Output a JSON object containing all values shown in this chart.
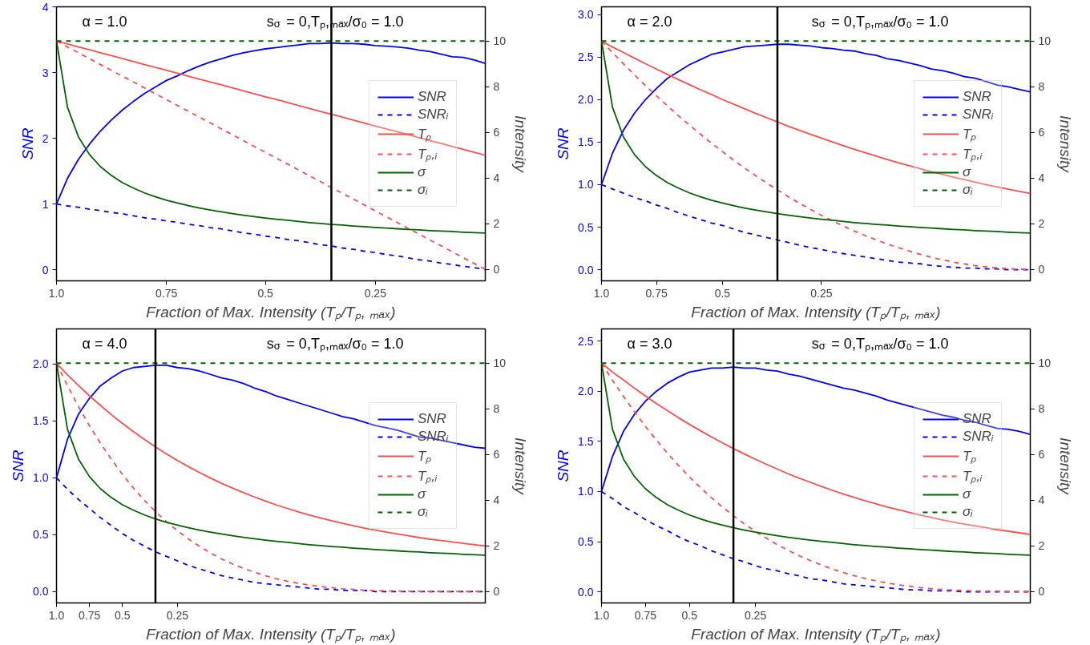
{
  "chart_data": [
    {
      "type": "line",
      "ylabel": "SNR",
      "y2label": "Intensity",
      "xlabel": "Fraction of Max. Intensity (Tₚ/Tₚ, ₘₐₓ)",
      "annotations": [
        "α = 1.0",
        "s$_{σ}$ = 0,Tₚ,ₘₐₓ/σ₀ = 1.0"
      ],
      "categories": [
        "1.0",
        null,
        null,
        null,
        null,
        null,
        null,
        null,
        null,
        null,
        "0.75",
        null,
        null,
        null,
        null,
        null,
        null,
        null,
        null,
        "0.5",
        null,
        null,
        null,
        null,
        null,
        null,
        null,
        null,
        null,
        "0.25",
        null,
        null,
        null,
        null,
        null,
        null,
        null,
        null,
        null,
        null
      ],
      "ylim": [
        -0.17,
        4.0
      ],
      "yticks": [
        0,
        1,
        2,
        3,
        4
      ],
      "y2lim": [
        -0.5,
        11.5
      ],
      "y2ticks": [
        0,
        2,
        4,
        6,
        8,
        10
      ],
      "legend": "right",
      "series": [
        {
          "name": "SNR",
          "color": "#0000ff",
          "values": [
            1.0,
            1.39,
            1.68,
            1.91,
            2.11,
            2.28,
            2.43,
            2.56,
            2.68,
            2.78,
            2.88,
            2.95,
            3.03,
            3.1,
            3.16,
            3.21,
            3.26,
            3.3,
            3.33,
            3.36,
            3.38,
            3.4,
            3.42,
            3.44,
            3.44,
            3.45,
            3.44,
            3.44,
            3.43,
            3.41,
            3.4,
            3.39,
            3.37,
            3.34,
            3.32,
            3.28,
            3.24,
            3.23,
            3.19,
            3.14
          ]
        },
        {
          "name": "SNRᵢ",
          "color": "#0000ff",
          "line_style": "dashed",
          "values": [
            1,
            0.97,
            0.95,
            0.92,
            0.9,
            0.87,
            0.85,
            0.82,
            0.79,
            0.77,
            0.74,
            0.72,
            0.69,
            0.67,
            0.64,
            0.62,
            0.59,
            0.56,
            0.54,
            0.51,
            0.49,
            0.46,
            0.44,
            0.41,
            0.38,
            0.36,
            0.33,
            0.31,
            0.28,
            0.26,
            0.23,
            0.21,
            0.18,
            0.15,
            0.13,
            0.1,
            0.08,
            0.05,
            0.03,
            0
          ]
        },
        {
          "name": "Tₚ",
          "color": "#ff4d4d",
          "axis": "y2",
          "values": [
            10,
            9.87,
            9.74,
            9.62,
            9.49,
            9.36,
            9.23,
            9.1,
            8.97,
            8.85,
            8.72,
            8.59,
            8.46,
            8.33,
            8.21,
            8.08,
            7.95,
            7.82,
            7.69,
            7.56,
            7.44,
            7.31,
            7.18,
            7.05,
            6.92,
            6.79,
            6.67,
            6.54,
            6.41,
            6.28,
            6.15,
            6.03,
            5.9,
            5.77,
            5.64,
            5.51,
            5.38,
            5.26,
            5.13,
            5.0
          ]
        },
        {
          "name": "Tₚ,ᵢ",
          "color": "#ff4d4d",
          "axis": "y2",
          "line_style": "dashed",
          "values": [
            10,
            9.74,
            9.49,
            9.23,
            8.97,
            8.72,
            8.46,
            8.21,
            7.95,
            7.69,
            7.44,
            7.18,
            6.92,
            6.67,
            6.41,
            6.15,
            5.9,
            5.64,
            5.38,
            5.13,
            4.87,
            4.62,
            4.36,
            4.1,
            3.85,
            3.59,
            3.33,
            3.08,
            2.82,
            2.56,
            2.31,
            2.05,
            1.79,
            1.54,
            1.28,
            1.03,
            0.77,
            0.51,
            0.26,
            0
          ]
        },
        {
          "name": "σ",
          "color": "#006400",
          "axis": "y2",
          "values": [
            10,
            7.1,
            5.8,
            5.03,
            4.5,
            4.11,
            3.8,
            3.56,
            3.35,
            3.18,
            3.03,
            2.91,
            2.79,
            2.69,
            2.6,
            2.52,
            2.44,
            2.37,
            2.31,
            2.25,
            2.2,
            2.15,
            2.1,
            2.05,
            2.01,
            1.97,
            1.94,
            1.9,
            1.87,
            1.84,
            1.81,
            1.78,
            1.75,
            1.73,
            1.7,
            1.68,
            1.66,
            1.63,
            1.61,
            1.59
          ]
        },
        {
          "name": "σᵢ",
          "color": "#006400",
          "axis": "y2",
          "line_style": "dashed",
          "values": [
            10,
            10,
            10,
            10,
            10,
            10,
            10,
            10,
            10,
            10,
            10,
            10,
            10,
            10,
            10,
            10,
            10,
            10,
            10,
            10,
            10,
            10,
            10,
            10,
            10,
            10,
            10,
            10,
            10,
            10,
            10,
            10,
            10,
            10,
            10,
            10,
            10,
            10,
            10,
            10
          ]
        }
      ]
    },
    {
      "type": "line",
      "ylabel": "SNR",
      "y2label": "Intensity",
      "xlabel": "Fraction of Max. Intensity (Tₚ/Tₚ, ₘₐₓ)",
      "annotations": [
        "α = 2.0",
        "s$_{σ}$ = 0,Tₚ,ₘₐₓ/σ₀ = 1.0"
      ],
      "categories": [
        "1.0",
        null,
        null,
        null,
        null,
        "0.75",
        null,
        null,
        null,
        null,
        null,
        "0.5",
        null,
        null,
        null,
        null,
        null,
        null,
        null,
        null,
        "0.25",
        null,
        null,
        null,
        null,
        null,
        null,
        null,
        null,
        null,
        null,
        null,
        null,
        null,
        null,
        null,
        null,
        null,
        null,
        null
      ],
      "ylim": [
        -0.13,
        3.09
      ],
      "yticks": [
        {
          "value": 0,
          "label": "0.0"
        },
        0.5,
        {
          "value": 1,
          "label": "1.0"
        },
        1.5,
        {
          "value": 2,
          "label": "2.0"
        },
        2.5,
        {
          "value": 3,
          "label": "3.0"
        }
      ],
      "y2lim": [
        -0.5,
        11.5
      ],
      "y2ticks": [
        0,
        2,
        4,
        6,
        8,
        10
      ],
      "legend": "right",
      "series": [
        {
          "name": "SNR",
          "color": "#0000ff",
          "values": [
            1.0,
            1.37,
            1.64,
            1.84,
            2.0,
            2.13,
            2.25,
            2.33,
            2.41,
            2.47,
            2.53,
            2.56,
            2.59,
            2.62,
            2.63,
            2.64,
            2.65,
            2.65,
            2.64,
            2.63,
            2.61,
            2.6,
            2.58,
            2.57,
            2.54,
            2.52,
            2.48,
            2.46,
            2.43,
            2.4,
            2.36,
            2.34,
            2.31,
            2.27,
            2.25,
            2.21,
            2.17,
            2.15,
            2.12,
            2.09
          ]
        },
        {
          "name": "SNRᵢ",
          "color": "#0000ff",
          "line_style": "dashed",
          "values": [
            1,
            0.95,
            0.9,
            0.85,
            0.81,
            0.76,
            0.72,
            0.67,
            0.63,
            0.59,
            0.55,
            0.52,
            0.48,
            0.44,
            0.41,
            0.38,
            0.35,
            0.32,
            0.29,
            0.26,
            0.24,
            0.21,
            0.19,
            0.17,
            0.15,
            0.13,
            0.11,
            0.09,
            0.08,
            0.07,
            0.05,
            0.04,
            0.03,
            0.02,
            0.02,
            0.01,
            0.01,
            0,
            0,
            0
          ]
        },
        {
          "name": "Tₚ",
          "color": "#ff4d4d",
          "axis": "y2",
          "values": [
            10,
            9.74,
            9.5,
            9.25,
            9.01,
            8.77,
            8.54,
            8.31,
            8.09,
            7.87,
            7.66,
            7.44,
            7.24,
            7.04,
            6.84,
            6.65,
            6.46,
            6.27,
            6.09,
            5.92,
            5.75,
            5.58,
            5.42,
            5.26,
            5.11,
            4.96,
            4.81,
            4.67,
            4.54,
            4.41,
            4.28,
            4.16,
            4.04,
            3.93,
            3.82,
            3.71,
            3.61,
            3.51,
            3.42,
            3.33
          ]
        },
        {
          "name": "Tₚ,ᵢ",
          "color": "#ff4d4d",
          "axis": "y2",
          "line_style": "dashed",
          "values": [
            10,
            9.49,
            9.0,
            8.52,
            8.05,
            7.6,
            7.16,
            6.73,
            6.32,
            5.92,
            5.53,
            5.16,
            4.79,
            4.44,
            4.11,
            3.79,
            3.48,
            3.18,
            2.9,
            2.63,
            2.37,
            2.13,
            1.9,
            1.68,
            1.48,
            1.29,
            1.11,
            0.95,
            0.8,
            0.66,
            0.53,
            0.42,
            0.32,
            0.24,
            0.16,
            0.11,
            0.06,
            0.03,
            0.01,
            0
          ]
        },
        {
          "name": "σ",
          "color": "#006400",
          "axis": "y2",
          "values": [
            10,
            7.1,
            5.8,
            5.03,
            4.5,
            4.11,
            3.8,
            3.56,
            3.35,
            3.18,
            3.03,
            2.91,
            2.79,
            2.69,
            2.6,
            2.52,
            2.44,
            2.37,
            2.31,
            2.25,
            2.2,
            2.15,
            2.1,
            2.05,
            2.01,
            1.97,
            1.94,
            1.9,
            1.87,
            1.84,
            1.81,
            1.78,
            1.75,
            1.73,
            1.7,
            1.68,
            1.66,
            1.63,
            1.61,
            1.59
          ]
        },
        {
          "name": "σᵢ",
          "color": "#006400",
          "axis": "y2",
          "line_style": "dashed",
          "values": [
            10,
            10,
            10,
            10,
            10,
            10,
            10,
            10,
            10,
            10,
            10,
            10,
            10,
            10,
            10,
            10,
            10,
            10,
            10,
            10,
            10,
            10,
            10,
            10,
            10,
            10,
            10,
            10,
            10,
            10,
            10,
            10,
            10,
            10,
            10,
            10,
            10,
            10,
            10,
            10
          ]
        }
      ]
    },
    {
      "type": "line",
      "ylabel": "SNR",
      "y2label": "Intensity",
      "xlabel": "Fraction of Max. Intensity (Tₚ/Tₚ, ₘₐₓ)",
      "annotations": [
        "α = 4.0",
        "s$_{σ}$ = 0,Tₚ,ₘₐₓ/σ₀ = 1.0"
      ],
      "categories": [
        "1.0",
        null,
        null,
        "0.75",
        null,
        null,
        "0.5",
        null,
        null,
        null,
        null,
        "0.25",
        null,
        null,
        null,
        null,
        null,
        null,
        null,
        null,
        null,
        null,
        null,
        null,
        null,
        null,
        null,
        null,
        null,
        null,
        null,
        null,
        null,
        null,
        null,
        null,
        null,
        null,
        null,
        null
      ],
      "ylim": [
        -0.1,
        2.31
      ],
      "yticks": [
        {
          "value": 0,
          "label": "0.0"
        },
        0.5,
        {
          "value": 1,
          "label": "1.0"
        },
        1.5,
        {
          "value": 2,
          "label": "2.0"
        }
      ],
      "y2lim": [
        -0.5,
        11.5
      ],
      "y2ticks": [
        0,
        2,
        4,
        6,
        8,
        10
      ],
      "legend": "right",
      "series": [
        {
          "name": "SNR",
          "color": "#0000ff",
          "values": [
            1.0,
            1.34,
            1.56,
            1.7,
            1.81,
            1.88,
            1.94,
            1.97,
            1.98,
            1.99,
            1.99,
            1.97,
            1.96,
            1.94,
            1.91,
            1.88,
            1.86,
            1.83,
            1.79,
            1.76,
            1.72,
            1.69,
            1.66,
            1.63,
            1.6,
            1.57,
            1.54,
            1.52,
            1.49,
            1.46,
            1.44,
            1.42,
            1.39,
            1.36,
            1.35,
            1.33,
            1.31,
            1.29,
            1.27,
            1.26
          ]
        },
        {
          "name": "SNRᵢ",
          "color": "#0000ff",
          "line_style": "dashed",
          "values": [
            1,
            0.9,
            0.81,
            0.73,
            0.65,
            0.58,
            0.51,
            0.45,
            0.4,
            0.35,
            0.31,
            0.27,
            0.23,
            0.2,
            0.17,
            0.14,
            0.12,
            0.1,
            0.08,
            0.07,
            0.06,
            0.05,
            0.04,
            0.03,
            0.02,
            0.02,
            0.01,
            0.01,
            0.01,
            0,
            0,
            0,
            0,
            0,
            0,
            0,
            0,
            0,
            0,
            0
          ]
        },
        {
          "name": "Tₚ",
          "color": "#ff4d4d",
          "axis": "y2",
          "values": [
            10,
            9.49,
            9.02,
            8.57,
            8.15,
            7.74,
            7.36,
            7.0,
            6.66,
            6.33,
            6.03,
            5.74,
            5.47,
            5.21,
            4.97,
            4.74,
            4.53,
            4.33,
            4.14,
            3.96,
            3.79,
            3.64,
            3.49,
            3.35,
            3.22,
            3.1,
            2.99,
            2.88,
            2.78,
            2.69,
            2.6,
            2.52,
            2.44,
            2.36,
            2.29,
            2.23,
            2.17,
            2.11,
            2.05,
            2.0
          ]
        },
        {
          "name": "Tₚ,ᵢ",
          "color": "#ff4d4d",
          "axis": "y2",
          "line_style": "dashed",
          "values": [
            10,
            9.01,
            8.1,
            7.26,
            6.49,
            5.78,
            5.13,
            4.53,
            3.99,
            3.5,
            3.06,
            2.66,
            2.3,
            1.98,
            1.69,
            1.43,
            1.21,
            1.01,
            0.84,
            0.69,
            0.56,
            0.45,
            0.36,
            0.28,
            0.22,
            0.17,
            0.12,
            0.09,
            0.06,
            0.04,
            0.03,
            0.02,
            0.01,
            0.01,
            0,
            0,
            0,
            0,
            0,
            0
          ]
        },
        {
          "name": "σ",
          "color": "#006400",
          "axis": "y2",
          "values": [
            10,
            7.1,
            5.8,
            5.03,
            4.5,
            4.11,
            3.8,
            3.56,
            3.35,
            3.18,
            3.03,
            2.91,
            2.79,
            2.69,
            2.6,
            2.52,
            2.44,
            2.37,
            2.31,
            2.25,
            2.2,
            2.15,
            2.1,
            2.05,
            2.01,
            1.97,
            1.94,
            1.9,
            1.87,
            1.84,
            1.81,
            1.78,
            1.75,
            1.73,
            1.7,
            1.68,
            1.66,
            1.63,
            1.61,
            1.59
          ]
        },
        {
          "name": "σᵢ",
          "color": "#006400",
          "axis": "y2",
          "line_style": "dashed",
          "values": [
            10,
            10,
            10,
            10,
            10,
            10,
            10,
            10,
            10,
            10,
            10,
            10,
            10,
            10,
            10,
            10,
            10,
            10,
            10,
            10,
            10,
            10,
            10,
            10,
            10,
            10,
            10,
            10,
            10,
            10,
            10,
            10,
            10,
            10,
            10,
            10,
            10,
            10,
            10,
            10
          ]
        }
      ]
    },
    {
      "type": "line",
      "ylabel": "SNR",
      "y2label": "Intensity",
      "xlabel": "Fraction of Max. Intensity (Tₚ/Tₚ, ₘₐₓ)",
      "annotations": [
        "α = 3.0",
        "s$_{σ}$ = 0,Tₚ,ₘₐₓ/σ₀ = 1.0"
      ],
      "categories": [
        "1.0",
        null,
        null,
        null,
        "0.75",
        null,
        null,
        null,
        "0.5",
        null,
        null,
        null,
        null,
        null,
        "0.25",
        null,
        null,
        null,
        null,
        null,
        null,
        null,
        null,
        null,
        null,
        null,
        null,
        null,
        null,
        null,
        null,
        null,
        null,
        null,
        null,
        null,
        null,
        null,
        null,
        null
      ],
      "ylim": [
        -0.11,
        2.62
      ],
      "yticks": [
        {
          "value": 0,
          "label": "0.0"
        },
        0.5,
        {
          "value": 1,
          "label": "1.0"
        },
        1.5,
        {
          "value": 2,
          "label": "2.0"
        },
        2.5
      ],
      "y2lim": [
        -0.5,
        11.5
      ],
      "y2ticks": [
        0,
        2,
        4,
        6,
        8,
        10
      ],
      "legend": "right",
      "series": [
        {
          "name": "SNR",
          "color": "#0000ff",
          "values": [
            1.0,
            1.35,
            1.6,
            1.77,
            1.9,
            2.0,
            2.08,
            2.14,
            2.19,
            2.21,
            2.23,
            2.23,
            2.24,
            2.23,
            2.23,
            2.21,
            2.2,
            2.17,
            2.15,
            2.12,
            2.09,
            2.06,
            2.03,
            2.01,
            1.98,
            1.95,
            1.91,
            1.88,
            1.85,
            1.82,
            1.79,
            1.76,
            1.74,
            1.71,
            1.69,
            1.66,
            1.63,
            1.62,
            1.6,
            1.57
          ]
        },
        {
          "name": "SNRᵢ",
          "color": "#0000ff",
          "line_style": "dashed",
          "values": [
            1,
            0.93,
            0.85,
            0.79,
            0.72,
            0.66,
            0.61,
            0.55,
            0.5,
            0.46,
            0.41,
            0.37,
            0.33,
            0.3,
            0.26,
            0.23,
            0.21,
            0.18,
            0.16,
            0.13,
            0.12,
            0.1,
            0.08,
            0.07,
            0.06,
            0.05,
            0.04,
            0.03,
            0.02,
            0.02,
            0.01,
            0.01,
            0.01,
            0,
            0,
            0,
            0,
            0,
            0,
            0
          ]
        },
        {
          "name": "Tₚ",
          "color": "#ff4d4d",
          "axis": "y2",
          "values": [
            10,
            9.61,
            9.26,
            8.9,
            8.56,
            8.23,
            7.92,
            7.61,
            7.32,
            7.04,
            6.77,
            6.51,
            6.26,
            6.02,
            5.79,
            5.57,
            5.36,
            5.15,
            4.96,
            4.78,
            4.6,
            4.43,
            4.27,
            4.12,
            3.97,
            3.84,
            3.7,
            3.58,
            3.46,
            3.35,
            3.24,
            3.14,
            3.04,
            2.95,
            2.87,
            2.79,
            2.71,
            2.64,
            2.57,
            2.5
          ]
        },
        {
          "name": "Tₚ,ᵢ",
          "color": "#ff4d4d",
          "axis": "y2",
          "line_style": "dashed",
          "values": [
            10,
            9.25,
            8.54,
            7.87,
            7.23,
            6.63,
            6.06,
            5.52,
            5.02,
            4.55,
            4.11,
            3.7,
            3.32,
            2.96,
            2.63,
            2.33,
            2.05,
            1.8,
            1.56,
            1.35,
            1.16,
            0.98,
            0.83,
            0.69,
            0.57,
            0.46,
            0.37,
            0.29,
            0.23,
            0.17,
            0.12,
            0.09,
            0.06,
            0.04,
            0.02,
            0.01,
            0.01,
            0,
            0,
            0
          ]
        },
        {
          "name": "σ",
          "color": "#006400",
          "axis": "y2",
          "values": [
            10,
            7.1,
            5.8,
            5.03,
            4.5,
            4.11,
            3.8,
            3.56,
            3.35,
            3.18,
            3.03,
            2.91,
            2.79,
            2.69,
            2.6,
            2.52,
            2.44,
            2.37,
            2.31,
            2.25,
            2.2,
            2.15,
            2.1,
            2.05,
            2.01,
            1.97,
            1.94,
            1.9,
            1.87,
            1.84,
            1.81,
            1.78,
            1.75,
            1.73,
            1.7,
            1.68,
            1.66,
            1.63,
            1.61,
            1.59
          ]
        },
        {
          "name": "σᵢ",
          "color": "#006400",
          "axis": "y2",
          "line_style": "dashed",
          "values": [
            10,
            10,
            10,
            10,
            10,
            10,
            10,
            10,
            10,
            10,
            10,
            10,
            10,
            10,
            10,
            10,
            10,
            10,
            10,
            10,
            10,
            10,
            10,
            10,
            10,
            10,
            10,
            10,
            10,
            10,
            10,
            10,
            10,
            10,
            10,
            10,
            10,
            10,
            10,
            10
          ]
        }
      ]
    }
  ]
}
